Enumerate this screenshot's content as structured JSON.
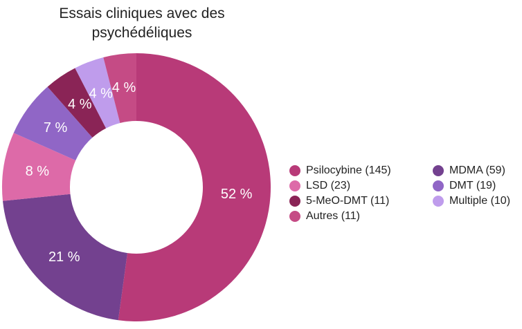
{
  "chart_data": {
    "type": "pie",
    "variant": "donut",
    "title_lines": [
      "Essais cliniques avec des",
      "psychédéliques"
    ],
    "slices": [
      {
        "name": "Psilocybine",
        "value": 145,
        "percent_label": "52 %",
        "color": "#b83a78"
      },
      {
        "name": "MDMA",
        "value": 59,
        "percent_label": "21 %",
        "color": "#73418f"
      },
      {
        "name": "LSD",
        "value": 23,
        "percent_label": "8 %",
        "color": "#dd6aa8"
      },
      {
        "name": "DMT",
        "value": 19,
        "percent_label": "7 %",
        "color": "#9066c6"
      },
      {
        "name": "5-MeO-DMT",
        "value": 11,
        "percent_label": "4 %",
        "color": "#8a2456"
      },
      {
        "name": "Multiple",
        "value": 10,
        "percent_label": "4 %",
        "color": "#bf9cec"
      },
      {
        "name": "Autres",
        "value": 11,
        "percent_label": "4 %",
        "color": "#c54b85"
      }
    ],
    "legend": {
      "placement": "right",
      "items": [
        "Psilocybine (145)",
        "LSD (23)",
        "5-MeO-DMT (11)",
        "Autres (11)",
        "MDMA (59)",
        "DMT (19)",
        "Multiple (10)"
      ]
    }
  }
}
